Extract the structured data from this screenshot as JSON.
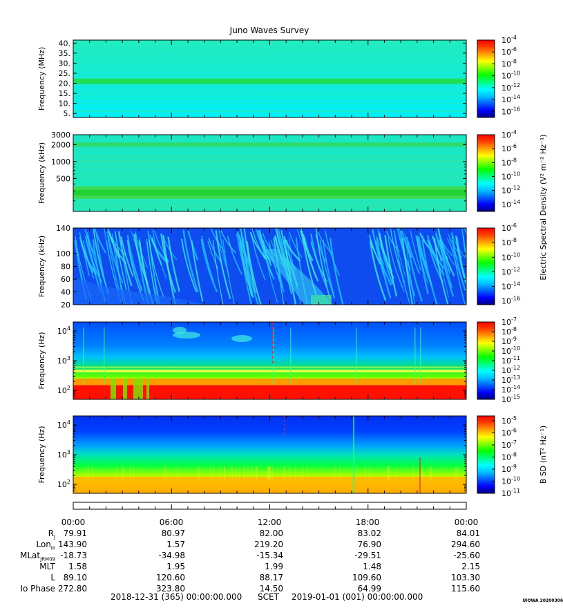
{
  "title": "Juno Waves Survey",
  "colors": {
    "colormap": [
      "#000080",
      "#0000ff",
      "#0060ff",
      "#00c0ff",
      "#00ffff",
      "#00ff80",
      "#00ff00",
      "#80ff00",
      "#ffff00",
      "#ffa000",
      "#ff4000",
      "#ff0000"
    ]
  },
  "chart_data": [
    {
      "type": "heatmap",
      "name": "Panel 1",
      "ylabel": "Frequency (MHz)",
      "yscale": "linear",
      "ylim": [
        3,
        41.5
      ],
      "yticks": [
        "40.",
        "35.",
        "30.",
        "25.",
        "20.",
        "15.",
        "10.",
        "5."
      ],
      "ytick_values": [
        40,
        35,
        30,
        25,
        20,
        15,
        10,
        5
      ],
      "features": [
        {
          "freq": 21,
          "description": "green band"
        }
      ],
      "colorbar_ticks": [
        "-4",
        "-6",
        "-8",
        "-10",
        "-12",
        "-14",
        "-16"
      ],
      "colorbar_range": [
        -17,
        -4
      ]
    },
    {
      "type": "heatmap",
      "name": "Panel 2",
      "ylabel": "Frequency (kHz)",
      "yscale": "log",
      "ylim": [
        130,
        3000
      ],
      "yticks": [
        "3000",
        "2000",
        "1000",
        "500"
      ],
      "ytick_values": [
        3000,
        2000,
        1000,
        500
      ],
      "features": [
        {
          "freq": 2000,
          "description": "green band"
        },
        {
          "freq": 280,
          "description": "green band"
        }
      ],
      "colorbar_ticks": [
        "-4",
        "-6",
        "-8",
        "-10",
        "-12",
        "-14"
      ],
      "colorbar_range": [
        -15,
        -4
      ],
      "colorbar_title": "Electric Spectral Density (V² m⁻² Hz⁻¹)"
    },
    {
      "type": "heatmap",
      "name": "Panel 3",
      "ylabel": "Frequency (kHz)",
      "yscale": "linear",
      "ylim": [
        20,
        140
      ],
      "yticks": [
        "140",
        "100",
        "80",
        "60",
        "40",
        "20"
      ],
      "ytick_values": [
        140,
        100,
        80,
        60,
        40,
        20
      ],
      "colorbar_ticks": [
        "-6",
        "-8",
        "-10",
        "-12",
        "-14",
        "-16"
      ],
      "colorbar_range": [
        -16.5,
        -6
      ]
    },
    {
      "type": "heatmap",
      "name": "Panel 4",
      "ylabel": "Frequency (Hz)",
      "yscale": "log",
      "ylim": [
        50,
        20000
      ],
      "yticks": [
        "4",
        "3",
        "2"
      ],
      "ytick_values": [
        10000,
        1000,
        100
      ],
      "colorbar_ticks": [
        "-7",
        "-8",
        "-9",
        "-10",
        "-11",
        "-12",
        "-13",
        "-14",
        "-15"
      ],
      "colorbar_range": [
        -15,
        -7
      ]
    },
    {
      "type": "heatmap",
      "name": "Panel 5",
      "ylabel": "Frequency (Hz)",
      "yscale": "log",
      "ylim": [
        50,
        20000
      ],
      "yticks": [
        "4",
        "3",
        "2"
      ],
      "ytick_values": [
        10000,
        1000,
        100
      ],
      "colorbar_ticks": [
        "-5",
        "-6",
        "-7",
        "-8",
        "-9",
        "-10",
        "-11"
      ],
      "colorbar_range": [
        -11,
        -4.6
      ],
      "colorbar_title": "B SD (nT² Hz⁻¹)"
    }
  ],
  "time_axis": [
    "00:00",
    "06:00",
    "12:00",
    "18:00",
    "00:00"
  ],
  "ephemeris": [
    {
      "label": "R",
      "sub": "J",
      "values": [
        "79.91",
        "80.97",
        "82.00",
        "83.02",
        "84.01"
      ]
    },
    {
      "label": "Lon",
      "sub": "III",
      "values": [
        "143.90",
        "1.57",
        "219.20",
        "76.90",
        "294.60"
      ]
    },
    {
      "label": "MLat",
      "sub": "JRM09",
      "values": [
        "-18.73",
        "-34.98",
        "-15.34",
        "-29.51",
        "-25.60"
      ]
    },
    {
      "label": "MLT",
      "sub": "",
      "values": [
        "1.58",
        "1.95",
        "1.99",
        "1.48",
        "2.15"
      ]
    },
    {
      "label": "L",
      "sub": "",
      "values": [
        "89.10",
        "120.60",
        "88.17",
        "109.60",
        "103.30"
      ]
    },
    {
      "label": "Io Phase",
      "sub": "",
      "values": [
        "272.80",
        "323.80",
        "14.50",
        "64.99",
        "115.60"
      ]
    }
  ],
  "footer": {
    "start": "2018-12-31 (365) 00:00:00.000",
    "mid": "SCET",
    "end": "2019-01-01 (001) 00:00:00.000"
  },
  "credit": "UIOWA 20200306"
}
